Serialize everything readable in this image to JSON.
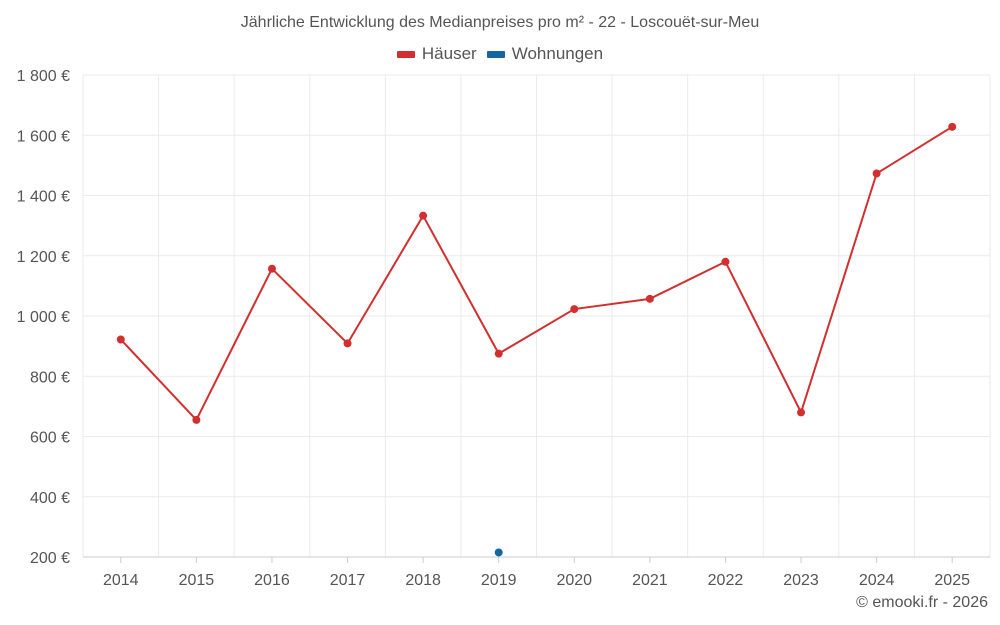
{
  "chart_data": {
    "type": "line",
    "title": "Jährliche Entwicklung des Medianpreises pro m² - 22 - Loscouët-sur-Meu",
    "xlabel": "",
    "ylabel": "",
    "categories": [
      "2014",
      "2015",
      "2016",
      "2017",
      "2018",
      "2019",
      "2020",
      "2021",
      "2022",
      "2023",
      "2024",
      "2025"
    ],
    "ylim": [
      200,
      1800
    ],
    "yticks": [
      200,
      400,
      600,
      800,
      1000,
      1200,
      1400,
      1600,
      1800
    ],
    "ytick_labels": [
      "200 €",
      "400 €",
      "600 €",
      "800 €",
      "1 000 €",
      "1 200 €",
      "1 400 €",
      "1 600 €",
      "1 800 €"
    ],
    "grid": true,
    "legend_position": "top-center",
    "series": [
      {
        "name": "Häuser",
        "color": "#d32f2f",
        "values": [
          922,
          655,
          1157,
          909,
          1333,
          875,
          1023,
          1057,
          1180,
          680,
          1473,
          1628
        ]
      },
      {
        "name": "Wohnungen",
        "color": "#1565a0",
        "values": [
          null,
          null,
          null,
          null,
          null,
          215,
          null,
          null,
          null,
          null,
          null,
          null
        ]
      }
    ]
  },
  "credit": "© emooki.fr - 2026"
}
